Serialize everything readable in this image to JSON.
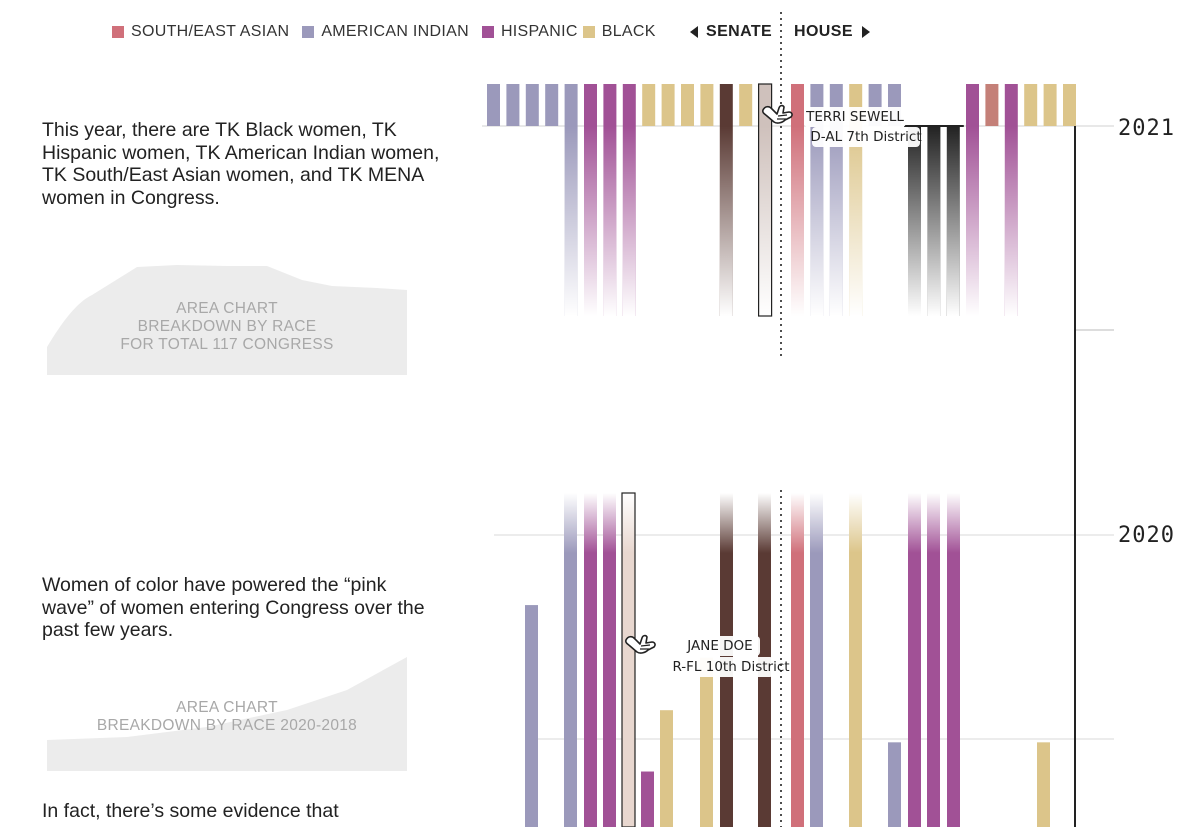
{
  "legend": [
    {
      "label": "SOUTH/EAST ASIAN",
      "color": "#d0707a"
    },
    {
      "label": "AMERICAN INDIAN",
      "color": "#9b99bb"
    },
    {
      "label": "HISPANIC",
      "color": "#a15196"
    },
    {
      "label": "BLACK",
      "color": "#dcc58a"
    }
  ],
  "toggle": {
    "senate": "SENATE",
    "house": "HOUSE"
  },
  "paragraphs": {
    "p1": "This year, there are TK Black women, TK Hispanic women, TK American Indian women, TK South/East Asian women, and TK MENA women in Congress.",
    "p2": "Women of color have powered the “pink wave” of women entering Congress over the past few years.",
    "p3": "In fact, there’s some evidence that"
  },
  "area_charts": {
    "a1": [
      "AREA CHART",
      "BREAKDOWN BY RACE",
      "FOR TOTAL 117 CONGRESS"
    ],
    "a2": [
      "AREA CHART",
      "BREAKDOWN BY RACE 2020-2018"
    ]
  },
  "chart_data": {
    "type": "bar",
    "x_groups": [
      "SENATE",
      "HOUSE"
    ],
    "y_labels": [
      "2021",
      "2020"
    ],
    "bars_2021": [
      {
        "group": "SENATE",
        "race": "AMERICAN INDIAN",
        "color": "#9b99bb",
        "fade": false
      },
      {
        "group": "SENATE",
        "race": "AMERICAN INDIAN",
        "color": "#9b99bb",
        "fade": false
      },
      {
        "group": "SENATE",
        "race": "AMERICAN INDIAN",
        "color": "#9b99bb",
        "fade": false
      },
      {
        "group": "SENATE",
        "race": "AMERICAN INDIAN",
        "color": "#9b99bb",
        "fade": false
      },
      {
        "group": "SENATE",
        "race": "AMERICAN INDIAN",
        "color": "#9b99bb",
        "fade": true
      },
      {
        "group": "SENATE",
        "race": "HISPANIC",
        "color": "#a15196",
        "fade": true
      },
      {
        "group": "SENATE",
        "race": "HISPANIC",
        "color": "#a15196",
        "fade": true
      },
      {
        "group": "SENATE",
        "race": "HISPANIC",
        "color": "#a15196",
        "fade": true
      },
      {
        "group": "SENATE",
        "race": "BLACK",
        "color": "#dcc58a",
        "fade": false
      },
      {
        "group": "SENATE",
        "race": "BLACK",
        "color": "#dcc58a",
        "fade": false
      },
      {
        "group": "SENATE",
        "race": "BLACK",
        "color": "#dcc58a",
        "fade": false
      },
      {
        "group": "SENATE",
        "race": "BLACK",
        "color": "#dcc58a",
        "fade": false
      },
      {
        "group": "SENATE",
        "race": "",
        "color": "#5a3a34",
        "fade": true
      },
      {
        "group": "SENATE",
        "race": "BLACK",
        "color": "#dcc58a",
        "fade": false
      },
      {
        "group": "SENATE",
        "race": "",
        "color": "#cfc1bc",
        "fade": true,
        "highlight": true
      },
      {
        "group": "HOUSE",
        "race": "SOUTH/EAST ASIAN",
        "color": "#d0707a",
        "fade": true
      },
      {
        "group": "HOUSE",
        "race": "AMERICAN INDIAN",
        "color": "#9b99bb",
        "fade": true
      },
      {
        "group": "HOUSE",
        "race": "AMERICAN INDIAN",
        "color": "#9b99bb",
        "fade": true
      },
      {
        "group": "HOUSE",
        "race": "BLACK",
        "color": "#dcc58a",
        "fade": true
      },
      {
        "group": "HOUSE",
        "race": "AMERICAN INDIAN",
        "color": "#9b99bb",
        "fade": false
      },
      {
        "group": "HOUSE",
        "race": "AMERICAN INDIAN",
        "color": "#9b99bb",
        "fade": false
      },
      {
        "group": "HOUSE",
        "race": "",
        "color": "#222222",
        "fade": true
      },
      {
        "group": "HOUSE",
        "race": "",
        "color": "#222222",
        "fade": true
      },
      {
        "group": "HOUSE",
        "race": "",
        "color": "#222222",
        "fade": true
      },
      {
        "group": "HOUSE",
        "race": "HISPANIC",
        "color": "#a15196",
        "fade": true
      },
      {
        "group": "HOUSE",
        "race": "",
        "color": "#c48078",
        "fade": false
      },
      {
        "group": "HOUSE",
        "race": "HISPANIC",
        "color": "#a15196",
        "fade": true
      },
      {
        "group": "HOUSE",
        "race": "BLACK",
        "color": "#dcc58a",
        "fade": false
      },
      {
        "group": "HOUSE",
        "race": "BLACK",
        "color": "#dcc58a",
        "fade": false
      },
      {
        "group": "HOUSE",
        "race": "BLACK",
        "color": "#dcc58a",
        "fade": false
      }
    ],
    "bars_2020": [
      {
        "group": "SENATE",
        "race": "AMERICAN INDIAN",
        "color": "#9b99bb",
        "value": 0.76
      },
      {
        "group": "SENATE",
        "race": "AMERICAN INDIAN",
        "color": "#9b99bb",
        "value": 1.0
      },
      {
        "group": "SENATE",
        "race": "HISPANIC",
        "color": "#a15196",
        "value": 1.0
      },
      {
        "group": "SENATE",
        "race": "HISPANIC",
        "color": "#a15196",
        "value": 1.0
      },
      {
        "group": "SENATE",
        "race": "",
        "color": "#e8d7cf",
        "value": 1.0,
        "highlight": true
      },
      {
        "group": "SENATE",
        "race": "HISPANIC",
        "color": "#a15196",
        "value": 0.19
      },
      {
        "group": "SENATE",
        "race": "BLACK",
        "color": "#dcc58a",
        "value": 0.4
      },
      {
        "group": "SENATE",
        "race": "BLACK",
        "color": "#dcc58a",
        "value": 0.58
      },
      {
        "group": "SENATE",
        "race": "",
        "color": "#5a3a34",
        "value": 1.0
      },
      {
        "group": "SENATE",
        "race": "",
        "color": "#5a3a34",
        "value": 1.0
      },
      {
        "group": "HOUSE",
        "race": "SOUTH/EAST ASIAN",
        "color": "#d0707a",
        "value": 1.0
      },
      {
        "group": "HOUSE",
        "race": "AMERICAN INDIAN",
        "color": "#9b99bb",
        "value": 1.0
      },
      {
        "group": "HOUSE",
        "race": "BLACK",
        "color": "#dcc58a",
        "value": 1.0
      },
      {
        "group": "HOUSE",
        "race": "AMERICAN INDIAN",
        "color": "#9b99bb",
        "value": 0.29
      },
      {
        "group": "HOUSE",
        "race": "HISPANIC",
        "color": "#a15196",
        "value": 1.0
      },
      {
        "group": "HOUSE",
        "race": "HISPANIC",
        "color": "#a15196",
        "value": 1.0
      },
      {
        "group": "HOUSE",
        "race": "HISPANIC",
        "color": "#a15196",
        "value": 1.0
      },
      {
        "group": "HOUSE",
        "race": "BLACK",
        "color": "#dcc58a",
        "value": 0.29
      }
    ],
    "tooltips": [
      {
        "name": "TERRI SEWELL",
        "district": "D-AL 7th District"
      },
      {
        "name": "JANE DOE",
        "district": "R-FL 10th District"
      }
    ]
  }
}
